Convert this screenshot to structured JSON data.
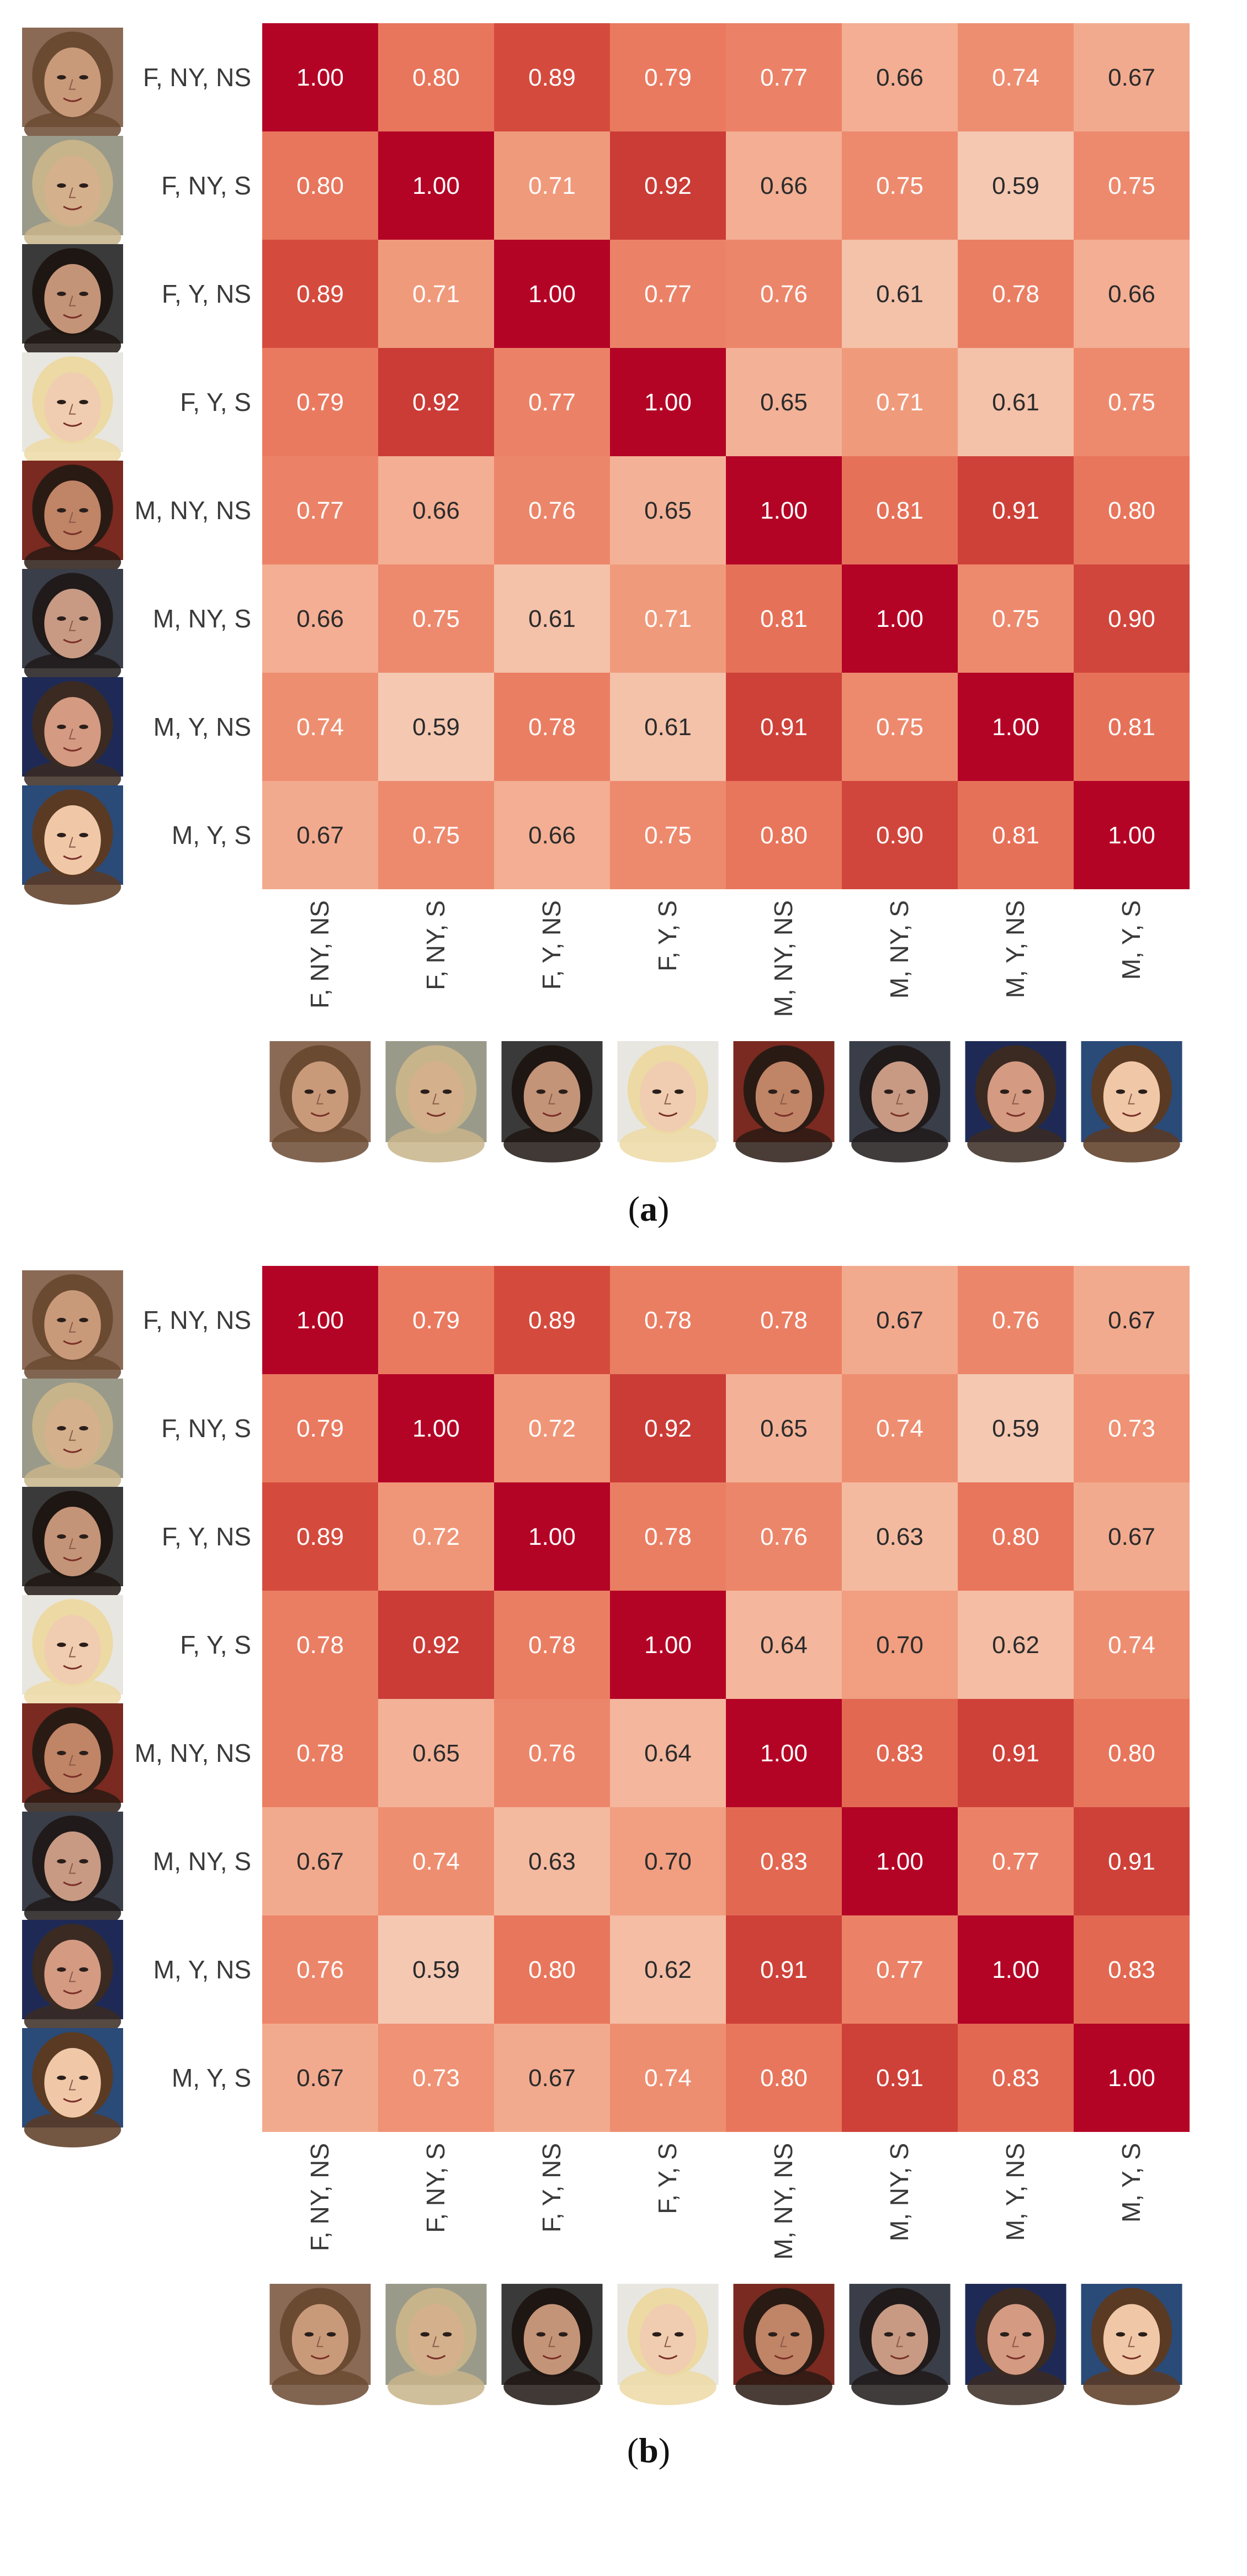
{
  "chart_data": [
    {
      "type": "heatmap",
      "panel": "a",
      "caption_open": "(",
      "caption_letter": "a",
      "caption_close": ")",
      "row_labels": [
        "F, NY, NS",
        "F, NY, S",
        "F, Y, NS",
        "F, Y, S",
        "M, NY, NS",
        "M, NY, S",
        "M, Y, NS",
        "M, Y, S"
      ],
      "col_labels": [
        "F, NY, NS",
        "F, NY, S",
        "F, Y, NS",
        "F, Y, S",
        "M, NY, NS",
        "M, NY, S",
        "M, Y, NS",
        "M, Y, S"
      ],
      "values": [
        [
          1.0,
          0.8,
          0.89,
          0.79,
          0.77,
          0.66,
          0.74,
          0.67
        ],
        [
          0.8,
          1.0,
          0.71,
          0.92,
          0.66,
          0.75,
          0.59,
          0.75
        ],
        [
          0.89,
          0.71,
          1.0,
          0.77,
          0.76,
          0.61,
          0.78,
          0.66
        ],
        [
          0.79,
          0.92,
          0.77,
          1.0,
          0.65,
          0.71,
          0.61,
          0.75
        ],
        [
          0.77,
          0.66,
          0.76,
          0.65,
          1.0,
          0.81,
          0.91,
          0.8
        ],
        [
          0.66,
          0.75,
          0.61,
          0.71,
          0.81,
          1.0,
          0.75,
          0.9
        ],
        [
          0.74,
          0.59,
          0.78,
          0.61,
          0.91,
          0.75,
          1.0,
          0.81
        ],
        [
          0.67,
          0.75,
          0.66,
          0.75,
          0.8,
          0.9,
          0.81,
          1.0
        ]
      ],
      "colormap": "Reds",
      "value_range": [
        0.55,
        1.0
      ]
    },
    {
      "type": "heatmap",
      "panel": "b",
      "caption_open": "(",
      "caption_letter": "b",
      "caption_close": ")",
      "row_labels": [
        "F, NY, NS",
        "F, NY, S",
        "F, Y, NS",
        "F, Y, S",
        "M, NY, NS",
        "M, NY, S",
        "M, Y, NS",
        "M, Y, S"
      ],
      "col_labels": [
        "F, NY, NS",
        "F, NY, S",
        "F, Y, NS",
        "F, Y, S",
        "M, NY, NS",
        "M, NY, S",
        "M, Y, NS",
        "M, Y, S"
      ],
      "values": [
        [
          1.0,
          0.79,
          0.89,
          0.78,
          0.78,
          0.67,
          0.76,
          0.67
        ],
        [
          0.79,
          1.0,
          0.72,
          0.92,
          0.65,
          0.74,
          0.59,
          0.73
        ],
        [
          0.89,
          0.72,
          1.0,
          0.78,
          0.76,
          0.63,
          0.8,
          0.67
        ],
        [
          0.78,
          0.92,
          0.78,
          1.0,
          0.64,
          0.7,
          0.62,
          0.74
        ],
        [
          0.78,
          0.65,
          0.76,
          0.64,
          1.0,
          0.83,
          0.91,
          0.8
        ],
        [
          0.67,
          0.74,
          0.63,
          0.7,
          0.83,
          1.0,
          0.77,
          0.91
        ],
        [
          0.76,
          0.59,
          0.8,
          0.62,
          0.91,
          0.77,
          1.0,
          0.83
        ],
        [
          0.67,
          0.73,
          0.67,
          0.74,
          0.8,
          0.91,
          0.83,
          1.0
        ]
      ],
      "colormap": "Reds",
      "value_range": [
        0.55,
        1.0
      ]
    }
  ],
  "faces": [
    {
      "label": "F, NY, NS",
      "skin": "#c99a7a",
      "hair": "#6b4a32",
      "bg": "#8a6a55"
    },
    {
      "label": "F, NY, S",
      "skin": "#d4b08c",
      "hair": "#c8b48a",
      "bg": "#9a9a8a"
    },
    {
      "label": "F, Y, NS",
      "skin": "#c49478",
      "hair": "#1e1612",
      "bg": "#3a3a3a"
    },
    {
      "label": "F, Y, S",
      "skin": "#f0cdb0",
      "hair": "#ecd9a4",
      "bg": "#e8e6e0"
    },
    {
      "label": "M, NY, NS",
      "skin": "#c08466",
      "hair": "#2a1a14",
      "bg": "#7a2a20"
    },
    {
      "label": "M, NY, S",
      "skin": "#c89a84",
      "hair": "#201a1a",
      "bg": "#3a3e48"
    },
    {
      "label": "M, Y, NS",
      "skin": "#d49a82",
      "hair": "#3a2a22",
      "bg": "#1e2a55"
    },
    {
      "label": "M, Y, S",
      "skin": "#f0c8a8",
      "hair": "#5a3a22",
      "bg": "#2a4a78"
    }
  ]
}
